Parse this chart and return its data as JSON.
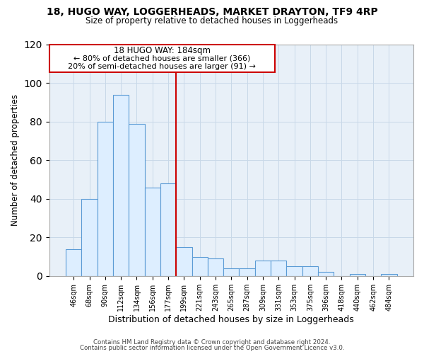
{
  "title_line1": "18, HUGO WAY, LOGGERHEADS, MARKET DRAYTON, TF9 4RP",
  "title_line2": "Size of property relative to detached houses in Loggerheads",
  "xlabel": "Distribution of detached houses by size in Loggerheads",
  "ylabel": "Number of detached properties",
  "categories": [
    "46sqm",
    "68sqm",
    "90sqm",
    "112sqm",
    "134sqm",
    "156sqm",
    "177sqm",
    "199sqm",
    "221sqm",
    "243sqm",
    "265sqm",
    "287sqm",
    "309sqm",
    "331sqm",
    "353sqm",
    "375sqm",
    "396sqm",
    "418sqm",
    "440sqm",
    "462sqm",
    "484sqm"
  ],
  "values": [
    14,
    40,
    80,
    94,
    79,
    46,
    48,
    15,
    10,
    9,
    4,
    4,
    8,
    8,
    5,
    5,
    2,
    0,
    1,
    0,
    1
  ],
  "bar_color": "#ddeeff",
  "bar_edge_color": "#5b9bd5",
  "highlight_bar_index": 7,
  "highlight_color": "#cc0000",
  "annotation_title": "18 HUGO WAY: 184sqm",
  "annotation_line1": "← 80% of detached houses are smaller (366)",
  "annotation_line2": "20% of semi-detached houses are larger (91) →",
  "annotation_box_color": "#ffffff",
  "annotation_box_edge_color": "#cc0000",
  "ylim": [
    0,
    120
  ],
  "yticks": [
    0,
    20,
    40,
    60,
    80,
    100,
    120
  ],
  "footer_line1": "Contains HM Land Registry data © Crown copyright and database right 2024.",
  "footer_line2": "Contains public sector information licensed under the Open Government Licence v3.0.",
  "background_color": "#ffffff",
  "plot_bg_color": "#e8f0f8",
  "grid_color": "#c8d8e8"
}
